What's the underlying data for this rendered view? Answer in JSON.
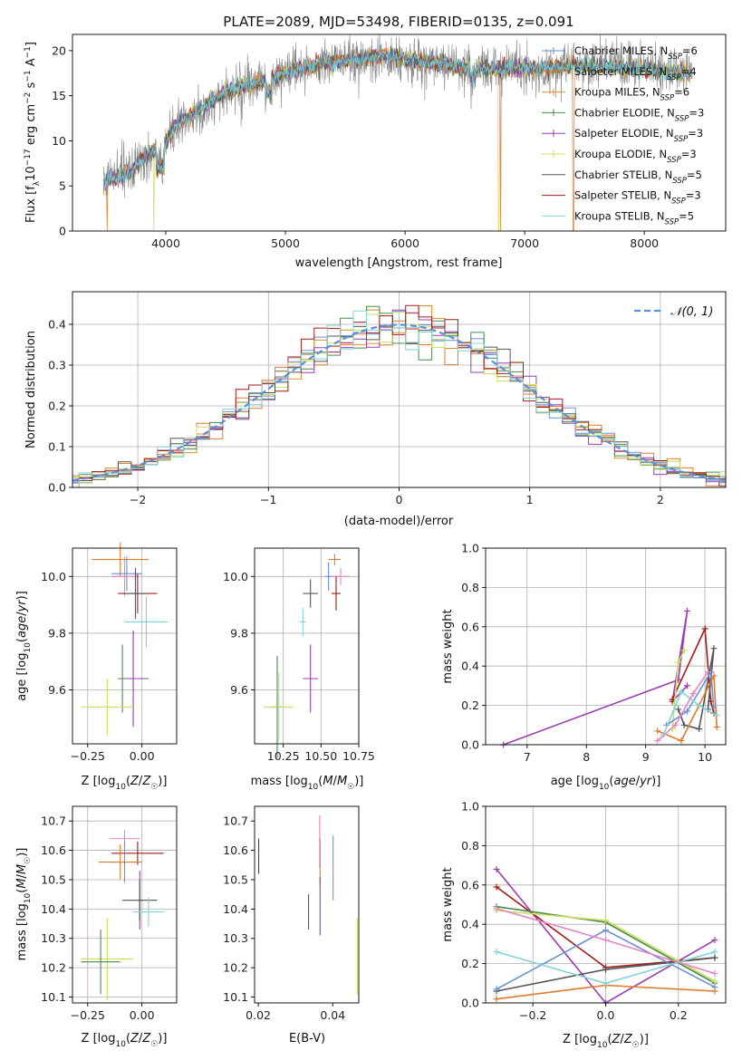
{
  "title": "PLATE=2089, MJD=53498, FIBERID=0135, z=0.091",
  "colors": {
    "chabrier_miles": "#6a8fd6",
    "salpeter_miles": "#e07a2c",
    "kroupa_miles": "#d9902a",
    "chabrier_elodie": "#4c8a4c",
    "salpeter_elodie": "#9a3fb0",
    "kroupa_elodie": "#c8e060",
    "chabrier_stelib": "#555555",
    "salpeter_stelib": "#a31a1a",
    "kroupa_stelib": "#7fd4d4",
    "pink": "#e884c0",
    "normal_curve": "#5b8ed9",
    "spectrum_gray": "#808080"
  },
  "chart_data": [
    {
      "id": "spectrum",
      "type": "line",
      "xlabel": "wavelength [Angstrom, rest frame]",
      "ylabel": "Flux [f_λ 10^-17 erg cm^-2 s^-1 A^-1]",
      "xlim": [
        3220,
        8680
      ],
      "ylim": [
        0,
        21.8
      ],
      "xticks": [
        4000,
        5000,
        6000,
        7000,
        8000
      ],
      "yticks": [
        0,
        5,
        10,
        15,
        20
      ],
      "legend_position": "right",
      "legend": [
        {
          "key": "chabrier_miles",
          "base": "Chabrier MILES, N",
          "sub": "SSP",
          "tail": "=6",
          "marker": "plus"
        },
        {
          "key": "salpeter_miles",
          "base": "Salpeter MILES, N",
          "sub": "SSP",
          "tail": "=4",
          "marker": "plus"
        },
        {
          "key": "kroupa_miles",
          "base": "Kroupa MILES, N",
          "sub": "SSP",
          "tail": "=6",
          "marker": "plus"
        },
        {
          "key": "chabrier_elodie",
          "base": "Chabrier ELODIE, N",
          "sub": "SSP",
          "tail": "=3",
          "marker": "plus"
        },
        {
          "key": "salpeter_elodie",
          "base": "Salpeter ELODIE, N",
          "sub": "SSP",
          "tail": "=3",
          "marker": "plus"
        },
        {
          "key": "kroupa_elodie",
          "base": "Kroupa ELODIE, N",
          "sub": "SSP",
          "tail": "=3",
          "marker": "plus"
        },
        {
          "key": "chabrier_stelib",
          "base": "Chabrier STELIB, N",
          "sub": "SSP",
          "tail": "=5",
          "marker": "line"
        },
        {
          "key": "salpeter_stelib",
          "base": "Salpeter STELIB, N",
          "sub": "SSP",
          "tail": "=3",
          "marker": "line"
        },
        {
          "key": "kroupa_stelib",
          "base": "Kroupa STELIB, N",
          "sub": "SSP",
          "tail": "=5",
          "marker": "line"
        }
      ],
      "continuum_anchors": [
        [
          3480,
          5.5
        ],
        [
          3700,
          6.5
        ],
        [
          3900,
          9.0
        ],
        [
          4000,
          10.0
        ],
        [
          4100,
          12.0
        ],
        [
          4300,
          13.5
        ],
        [
          4500,
          15.5
        ],
        [
          4800,
          16.5
        ],
        [
          5000,
          17.5
        ],
        [
          5300,
          18.5
        ],
        [
          5600,
          19.0
        ],
        [
          5800,
          19.5
        ],
        [
          6000,
          19.0
        ],
        [
          6300,
          18.5
        ],
        [
          6600,
          18.0
        ],
        [
          7000,
          18.0
        ],
        [
          7400,
          18.3
        ],
        [
          7800,
          18.2
        ],
        [
          8400,
          17.5
        ]
      ],
      "dips": [
        [
          3500,
          0
        ],
        [
          3940,
          0
        ],
        [
          6800,
          0
        ],
        [
          7410,
          0
        ]
      ]
    },
    {
      "id": "residuals",
      "type": "bar",
      "xlabel": "(data-model)/error",
      "ylabel": "Normed distribution",
      "xlim": [
        -2.5,
        2.5
      ],
      "ylim": [
        0,
        0.48
      ],
      "xticks": [
        -2,
        -1,
        0,
        1,
        2
      ],
      "yticks": [
        0.0,
        0.1,
        0.2,
        0.3,
        0.4
      ],
      "grid": true,
      "bin_width": 0.1,
      "legend_position": "top-right",
      "legend_label": "𝒩(0, 1)"
    },
    {
      "id": "age_vs_Z",
      "type": "scatter",
      "xlabel": "Z [log10(Z/Z☉)]",
      "ylabel": "age [log10(age/yr)]",
      "xlim": [
        -0.32,
        0.16
      ],
      "ylim": [
        9.41,
        10.1
      ],
      "xticks": [
        -0.25,
        0.0
      ],
      "yticks": [
        9.6,
        9.8,
        10.0
      ],
      "grid": true,
      "points": [
        {
          "key": "salpeter_miles",
          "x": -0.1,
          "xerr": 0.13,
          "y": 10.06,
          "yerr": 0.06
        },
        {
          "key": "chabrier_miles",
          "x": -0.07,
          "xerr": 0.07,
          "y": 10.01,
          "yerr": 0.06
        },
        {
          "key": "pink",
          "x": -0.08,
          "xerr": 0.06,
          "y": 10.0,
          "yerr": 0.07
        },
        {
          "key": "salpeter_stelib",
          "x": -0.02,
          "xerr": 0.09,
          "y": 9.94,
          "yerr": 0.07
        },
        {
          "key": "chabrier_stelib",
          "x": -0.03,
          "xerr": 0.05,
          "y": 9.94,
          "yerr": 0.09
        },
        {
          "key": "kroupa_stelib",
          "x": 0.02,
          "xerr": 0.1,
          "y": 9.84,
          "yerr": 0.09
        },
        {
          "key": "salpeter_elodie",
          "x": -0.04,
          "xerr": 0.07,
          "y": 9.64,
          "yerr": 0.17
        },
        {
          "key": "chabrier_elodie",
          "x": -0.09,
          "xerr": 0.01,
          "y": 9.64,
          "yerr": 0.12
        },
        {
          "key": "kroupa_elodie",
          "x": -0.16,
          "xerr": 0.12,
          "y": 9.54,
          "yerr": 0.1
        }
      ]
    },
    {
      "id": "age_vs_mass",
      "type": "scatter",
      "xlabel": "mass [log10(M/M☉)]",
      "ylabel": "",
      "xlim": [
        10.06,
        10.75
      ],
      "ylim": [
        9.41,
        10.1
      ],
      "xticks": [
        10.25,
        10.5,
        10.75
      ],
      "yticks": [
        9.6,
        9.8,
        10.0
      ],
      "grid": true,
      "points": [
        {
          "key": "salpeter_miles",
          "x": 10.59,
          "xerr": 0.04,
          "y": 10.06,
          "yerr": 0.02
        },
        {
          "key": "pink",
          "x": 10.63,
          "xerr": 0.06,
          "y": 10.0,
          "yerr": 0.03
        },
        {
          "key": "salpeter_stelib",
          "x": 10.6,
          "xerr": 0.03,
          "y": 9.94,
          "yerr": 0.06
        },
        {
          "key": "chabrier_miles",
          "x": 10.55,
          "xerr": 0.02,
          "y": 10.0,
          "yerr": 0.05
        },
        {
          "key": "chabrier_stelib",
          "x": 10.43,
          "xerr": 0.05,
          "y": 9.94,
          "yerr": 0.05
        },
        {
          "key": "kroupa_stelib",
          "x": 10.38,
          "xerr": 0.02,
          "y": 9.84,
          "yerr": 0.05
        },
        {
          "key": "salpeter_elodie",
          "x": 10.43,
          "xerr": 0.05,
          "y": 9.64,
          "yerr": 0.12
        },
        {
          "key": "chabrier_elodie",
          "x": 10.21,
          "xerr": 0.03,
          "y": 9.54,
          "yerr": 0.18
        },
        {
          "key": "kroupa_elodie",
          "x": 10.22,
          "xerr": 0.1,
          "y": 9.54,
          "yerr": 0.12
        }
      ]
    },
    {
      "id": "weight_vs_age",
      "type": "line",
      "xlabel": "age [log10(age/yr)]",
      "ylabel": "mass weight",
      "xlim": [
        6.3,
        10.35
      ],
      "ylim": [
        0,
        1.0
      ],
      "xticks": [
        7,
        8,
        9,
        10
      ],
      "yticks": [
        0.0,
        0.2,
        0.4,
        0.6,
        0.8,
        1.0
      ],
      "grid": true,
      "series": [
        {
          "key": "salpeter_elodie",
          "x": [
            6.6,
            9.55,
            9.7,
            9.45,
            9.7
          ],
          "y": [
            0.0,
            0.33,
            0.68,
            0.22,
            0.3
          ]
        },
        {
          "key": "salpeter_stelib",
          "x": [
            9.45,
            10.0,
            10.1,
            10.15
          ],
          "y": [
            0.23,
            0.59,
            0.22,
            0.16
          ]
        },
        {
          "key": "chabrier_stelib",
          "x": [
            9.55,
            9.65,
            9.9,
            10.15,
            10.05
          ],
          "y": [
            0.18,
            0.1,
            0.08,
            0.49,
            0.18
          ]
        },
        {
          "key": "kroupa_elodie",
          "x": [
            9.45,
            9.55,
            9.65
          ],
          "y": [
            0.08,
            0.42,
            0.48
          ]
        },
        {
          "key": "salpeter_miles",
          "x": [
            9.2,
            9.6,
            10.15,
            10.2
          ],
          "y": [
            0.07,
            0.02,
            0.35,
            0.09
          ]
        },
        {
          "key": "chabrier_miles",
          "x": [
            9.35,
            9.7,
            10.1,
            10.15
          ],
          "y": [
            0.1,
            0.17,
            0.37,
            0.19
          ]
        },
        {
          "key": "kroupa_stelib",
          "x": [
            9.3,
            9.6,
            9.9,
            10.2
          ],
          "y": [
            0.05,
            0.27,
            0.2,
            0.15
          ]
        },
        {
          "key": "pink",
          "x": [
            9.2,
            9.5,
            9.8,
            10.05
          ],
          "y": [
            0.02,
            0.1,
            0.26,
            0.37
          ]
        }
      ]
    },
    {
      "id": "mass_vs_Z",
      "type": "scatter",
      "xlabel": "Z [log10(Z/Z☉)]",
      "ylabel": "mass [log10(M/M☉)]",
      "xlim": [
        -0.32,
        0.16
      ],
      "ylim": [
        10.08,
        10.75
      ],
      "xticks": [
        -0.25,
        0.0
      ],
      "yticks": [
        10.1,
        10.2,
        10.3,
        10.4,
        10.5,
        10.6,
        10.7
      ],
      "grid": true,
      "points": [
        {
          "key": "pink",
          "x": -0.08,
          "xerr": 0.07,
          "y": 10.64,
          "yerr": 0.03
        },
        {
          "key": "salpeter_stelib",
          "x": -0.02,
          "xerr": 0.12,
          "y": 10.59,
          "yerr": 0.04
        },
        {
          "key": "chabrier_miles",
          "x": -0.08,
          "xerr": 0.06,
          "y": 10.56,
          "yerr": 0.07
        },
        {
          "key": "salpeter_miles",
          "x": -0.1,
          "xerr": 0.1,
          "y": 10.56,
          "yerr": 0.06
        },
        {
          "key": "salpeter_elodie",
          "x": -0.01,
          "xerr": 0.01,
          "y": 10.43,
          "yerr": 0.1
        },
        {
          "key": "chabrier_stelib",
          "x": -0.01,
          "xerr": 0.08,
          "y": 10.43,
          "yerr": 0.07
        },
        {
          "key": "kroupa_stelib",
          "x": 0.03,
          "xerr": 0.07,
          "y": 10.39,
          "yerr": 0.05
        },
        {
          "key": "kroupa_elodie",
          "x": -0.16,
          "xerr": 0.12,
          "y": 10.23,
          "yerr": 0.14
        },
        {
          "key": "chabrier_elodie",
          "x": -0.19,
          "xerr": 0.09,
          "y": 10.22,
          "yerr": 0.11
        }
      ]
    },
    {
      "id": "mass_vs_ebv",
      "type": "scatter",
      "xlabel": "E(B-V)",
      "ylabel": "",
      "xlim": [
        0.019,
        0.047
      ],
      "ylim": [
        10.08,
        10.75
      ],
      "xticks": [
        0.02,
        0.04
      ],
      "yticks": [
        10.1,
        10.2,
        10.3,
        10.4,
        10.5,
        10.6,
        10.7
      ],
      "grid": false,
      "points": [
        {
          "key": "salpeter_stelib",
          "x": 0.0201,
          "xerr": 0,
          "y": 10.58,
          "yerr": 0.06
        },
        {
          "key": "chabrier_stelib",
          "x": 0.0335,
          "xerr": 0,
          "y": 10.39,
          "yerr": 0.06
        },
        {
          "key": "pink",
          "x": 0.0365,
          "xerr": 0,
          "y": 10.63,
          "yerr": 0.09
        },
        {
          "key": "salpeter_miles",
          "x": 0.0366,
          "xerr": 0,
          "y": 10.56,
          "yerr": 0.08
        },
        {
          "key": "salpeter_elodie",
          "x": 0.0366,
          "xerr": 0,
          "y": 10.41,
          "yerr": 0.1
        },
        {
          "key": "chabrier_miles",
          "x": 0.0401,
          "xerr": 0,
          "y": 10.54,
          "yerr": 0.11
        },
        {
          "key": "kroupa_elodie",
          "x": 0.0466,
          "xerr": 0,
          "y": 10.24,
          "yerr": 0.13
        }
      ]
    },
    {
      "id": "weight_vs_Z",
      "type": "line",
      "xlabel": "Z [log10(Z/Z☉)]",
      "ylabel": "mass weight",
      "xlim": [
        -0.33,
        0.33
      ],
      "ylim": [
        0,
        1.0
      ],
      "xticks": [
        -0.2,
        0.0,
        0.2
      ],
      "yticks": [
        0.0,
        0.2,
        0.4,
        0.6,
        0.8,
        1.0
      ],
      "grid": true,
      "series": [
        {
          "key": "salpeter_elodie",
          "x": [
            -0.3,
            0.0,
            0.3
          ],
          "y": [
            0.68,
            0.0,
            0.32
          ]
        },
        {
          "key": "salpeter_stelib",
          "x": [
            -0.3,
            0.0,
            0.3
          ],
          "y": [
            0.59,
            0.18,
            0.23
          ]
        },
        {
          "key": "chabrier_stelib",
          "x": [
            -0.3,
            0.0,
            0.3
          ],
          "y": [
            0.06,
            0.17,
            0.23
          ]
        },
        {
          "key": "chabrier_elodie",
          "x": [
            -0.3,
            0.0,
            0.3
          ],
          "y": [
            0.49,
            0.41,
            0.1
          ]
        },
        {
          "key": "kroupa_elodie",
          "x": [
            -0.3,
            0.0,
            0.3
          ],
          "y": [
            0.47,
            0.42,
            0.11
          ]
        },
        {
          "key": "chabrier_miles",
          "x": [
            -0.3,
            0.0,
            0.3
          ],
          "y": [
            0.07,
            0.37,
            0.08
          ]
        },
        {
          "key": "salpeter_miles",
          "x": [
            -0.3,
            0.0,
            0.3
          ],
          "y": [
            0.02,
            0.09,
            0.06
          ]
        },
        {
          "key": "kroupa_stelib",
          "x": [
            -0.3,
            0.0,
            0.3
          ],
          "y": [
            0.26,
            0.1,
            0.26
          ]
        },
        {
          "key": "pink",
          "x": [
            -0.3,
            0.0,
            0.3
          ],
          "y": [
            0.48,
            0.32,
            0.15
          ]
        }
      ]
    }
  ]
}
